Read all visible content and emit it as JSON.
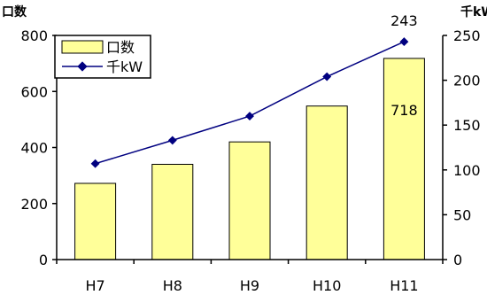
{
  "chart_data": {
    "type": "bar",
    "categories": [
      "H7",
      "H8",
      "H9",
      "H10",
      "H11"
    ],
    "series": [
      {
        "name": "口数",
        "type": "bar",
        "axis": "left",
        "values": [
          272,
          340,
          420,
          548,
          718
        ]
      },
      {
        "name": "千kW",
        "type": "line",
        "axis": "right",
        "values": [
          107,
          133,
          160,
          204,
          243
        ]
      }
    ],
    "y_left": {
      "label": "口数",
      "ylim": [
        0,
        800
      ],
      "ticks": [
        0,
        200,
        400,
        600,
        800
      ]
    },
    "y_right": {
      "label": "千kW",
      "ylim": [
        0,
        250
      ],
      "ticks": [
        0,
        50,
        100,
        150,
        200,
        250
      ]
    },
    "data_labels": [
      {
        "series": "口数",
        "category": "H11",
        "text": "718"
      },
      {
        "series": "千kW",
        "category": "H11",
        "text": "243"
      }
    ],
    "legend": {
      "position": "top-left",
      "items": [
        "口数",
        "千kW"
      ]
    },
    "grid": false,
    "colors": {
      "bar_fill": "#ffff99",
      "bar_stroke": "#000000",
      "line": "#000080",
      "marker": "#000080"
    }
  }
}
